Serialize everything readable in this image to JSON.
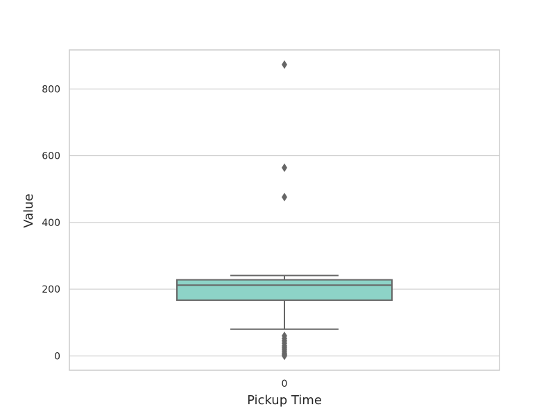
{
  "chart_data": {
    "type": "box",
    "title": "",
    "xlabel": "Pickup Time",
    "ylabel": "Value",
    "categories": [
      "0"
    ],
    "ylim": [
      -43,
      917
    ],
    "yticks": [
      0,
      200,
      400,
      600,
      800
    ],
    "grid": true,
    "box": {
      "category": "0",
      "whisker_low": 80,
      "q1": 167,
      "median": 212,
      "q3": 228,
      "whisker_high": 241,
      "outliers": [
        873,
        564,
        476,
        60,
        52,
        45,
        38,
        30,
        24,
        18,
        12,
        7,
        3,
        0
      ],
      "color": "#8dd3c7"
    }
  }
}
